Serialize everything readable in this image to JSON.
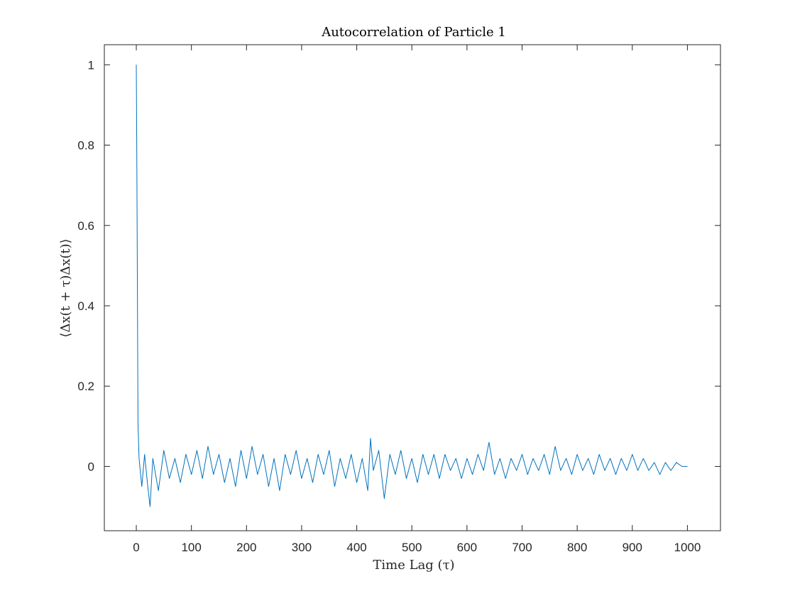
{
  "chart_data": {
    "type": "line",
    "title": "Autocorrelation of Particle 1",
    "xlabel": "Time Lag (τ)",
    "ylabel": "⟨Δx(t + τ)Δx(t)⟩",
    "xlim": [
      -58,
      1060
    ],
    "ylim": [
      -0.16,
      1.05
    ],
    "xticks": [
      0,
      100,
      200,
      300,
      400,
      500,
      600,
      700,
      800,
      900,
      1000
    ],
    "xtick_labels": [
      "0",
      "100",
      "200",
      "300",
      "400",
      "500",
      "600",
      "700",
      "800",
      "900",
      "1000"
    ],
    "yticks": [
      0,
      0.2,
      0.4,
      0.6,
      0.8,
      1
    ],
    "ytick_labels": [
      "0",
      "0.2",
      "0.4",
      "0.6",
      "0.8",
      "1"
    ],
    "grid": false,
    "series": [
      {
        "color": "#0072BD",
        "x": [
          0,
          1,
          2,
          3,
          5,
          10,
          15,
          20,
          25,
          30,
          40,
          50,
          60,
          70,
          80,
          90,
          100,
          110,
          120,
          130,
          140,
          150,
          160,
          170,
          180,
          190,
          200,
          210,
          220,
          230,
          240,
          250,
          260,
          270,
          280,
          290,
          300,
          310,
          320,
          330,
          340,
          350,
          360,
          370,
          380,
          390,
          400,
          410,
          420,
          425,
          430,
          440,
          450,
          460,
          470,
          480,
          490,
          500,
          510,
          520,
          530,
          540,
          550,
          560,
          570,
          580,
          590,
          600,
          610,
          620,
          630,
          640,
          650,
          660,
          670,
          680,
          690,
          700,
          710,
          720,
          730,
          740,
          750,
          760,
          770,
          780,
          790,
          800,
          810,
          820,
          830,
          840,
          850,
          860,
          870,
          880,
          890,
          900,
          910,
          920,
          930,
          940,
          950,
          960,
          970,
          980,
          990,
          1000
        ],
        "y": [
          1.0,
          0.75,
          0.43,
          0.11,
          0.02,
          -0.05,
          0.03,
          -0.04,
          -0.1,
          0.02,
          -0.06,
          0.04,
          -0.03,
          0.02,
          -0.04,
          0.03,
          -0.02,
          0.04,
          -0.03,
          0.05,
          -0.02,
          0.03,
          -0.04,
          0.02,
          -0.05,
          0.04,
          -0.03,
          0.05,
          -0.02,
          0.03,
          -0.05,
          0.02,
          -0.06,
          0.03,
          -0.02,
          0.04,
          -0.03,
          0.02,
          -0.04,
          0.03,
          -0.02,
          0.04,
          -0.05,
          0.02,
          -0.03,
          0.03,
          -0.04,
          0.02,
          -0.06,
          0.07,
          -0.01,
          0.04,
          -0.08,
          0.03,
          -0.02,
          0.04,
          -0.03,
          0.02,
          -0.04,
          0.03,
          -0.02,
          0.03,
          -0.03,
          0.03,
          -0.01,
          0.02,
          -0.03,
          0.02,
          -0.02,
          0.03,
          -0.01,
          0.06,
          -0.02,
          0.02,
          -0.03,
          0.02,
          -0.01,
          0.03,
          -0.02,
          0.02,
          -0.01,
          0.03,
          -0.02,
          0.05,
          -0.01,
          0.02,
          -0.02,
          0.03,
          -0.01,
          0.02,
          -0.02,
          0.03,
          -0.01,
          0.02,
          -0.02,
          0.02,
          -0.01,
          0.03,
          -0.01,
          0.02,
          -0.01,
          0.01,
          -0.02,
          0.01,
          -0.01,
          0.01,
          0.0,
          0.0
        ]
      }
    ]
  }
}
